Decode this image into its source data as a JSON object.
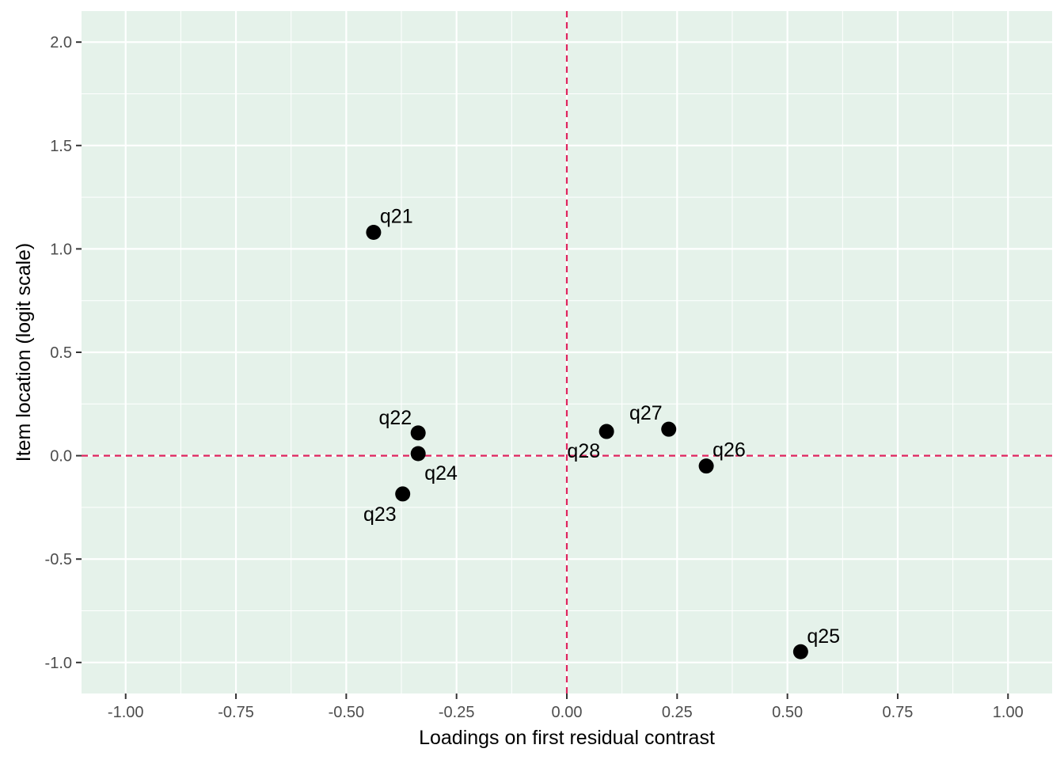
{
  "chart_data": {
    "type": "scatter",
    "title": "",
    "xlabel": "Loadings on first residual contrast",
    "ylabel": "Item location (logit scale)",
    "xlim": [
      -1.1,
      1.1
    ],
    "ylim": [
      -1.15,
      2.15
    ],
    "x_ticks": [
      -1.0,
      -0.75,
      -0.5,
      -0.25,
      0.0,
      0.25,
      0.5,
      0.75,
      1.0
    ],
    "x_tick_labels": [
      "-1.00",
      "-0.75",
      "-0.50",
      "-0.25",
      "0.00",
      "0.25",
      "0.50",
      "0.75",
      "1.00"
    ],
    "y_ticks": [
      -1.0,
      -0.5,
      0.0,
      0.5,
      1.0,
      1.5,
      2.0
    ],
    "y_tick_labels": [
      "-1.0",
      "-0.5",
      "0.0",
      "0.5",
      "1.0",
      "1.5",
      "2.0"
    ],
    "grid": true,
    "reference_lines": {
      "x": 0,
      "y": 0,
      "style": "dashed"
    },
    "points": [
      {
        "label": "q21",
        "x": -0.438,
        "y": 1.08
      },
      {
        "label": "q22",
        "x": -0.337,
        "y": 0.11
      },
      {
        "label": "q23",
        "x": -0.372,
        "y": -0.185
      },
      {
        "label": "q24",
        "x": -0.337,
        "y": 0.01
      },
      {
        "label": "q25",
        "x": 0.53,
        "y": -0.948
      },
      {
        "label": "q26",
        "x": 0.316,
        "y": -0.05
      },
      {
        "label": "q27",
        "x": 0.231,
        "y": 0.128
      },
      {
        "label": "q28",
        "x": 0.09,
        "y": 0.117
      }
    ],
    "colors": {
      "panel_background": "#e5f2ea",
      "grid": "#ffffff",
      "reference_line": "#e0245e",
      "points": "#000000"
    }
  }
}
